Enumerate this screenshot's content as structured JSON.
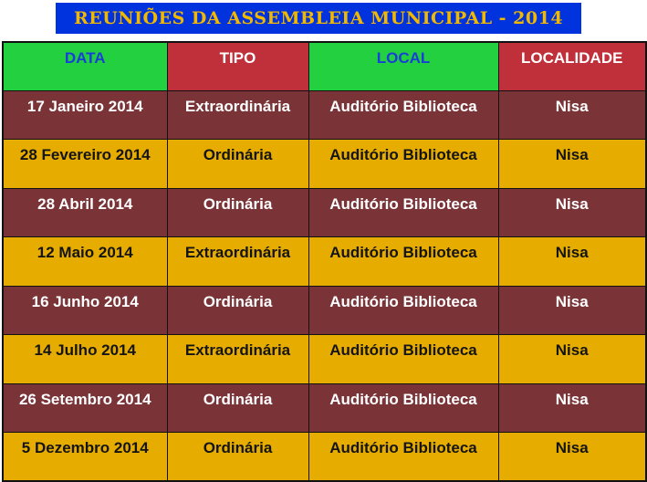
{
  "title": "REUNIÕES DA ASSEMBLEIA MUNICIPAL - 2014",
  "colors": {
    "banner_bg": "#0033dd",
    "banner_text": "#f0b800",
    "header_green": "#22d040",
    "header_red": "#c0303a",
    "row_maroon": "#7a3438",
    "row_gold": "#e6ac00"
  },
  "headers": [
    "DATA",
    "TIPO",
    "LOCAL",
    "LOCALIDADE"
  ],
  "rows": [
    {
      "data": "17 Janeiro 2014",
      "tipo": "Extraordinária",
      "local": "Auditório Biblioteca",
      "localidade": "Nisa",
      "style": "maroon"
    },
    {
      "data": "28 Fevereiro 2014",
      "tipo": "Ordinária",
      "local": "Auditório Biblioteca",
      "localidade": "Nisa",
      "style": "gold"
    },
    {
      "data": "28 Abril 2014",
      "tipo": "Ordinária",
      "local": "Auditório Biblioteca",
      "localidade": "Nisa",
      "style": "maroon"
    },
    {
      "data": "12 Maio 2014",
      "tipo": "Extraordinária",
      "local": "Auditório Biblioteca",
      "localidade": "Nisa",
      "style": "gold"
    },
    {
      "data": "16 Junho 2014",
      "tipo": "Ordinária",
      "local": "Auditório Biblioteca",
      "localidade": "Nisa",
      "style": "maroon"
    },
    {
      "data": "14 Julho 2014",
      "tipo": "Extraordinária",
      "local": "Auditório Biblioteca",
      "localidade": "Nisa",
      "style": "gold"
    },
    {
      "data": "26 Setembro 2014",
      "tipo": "Ordinária",
      "local": "Auditório Biblioteca",
      "localidade": "Nisa",
      "style": "maroon"
    },
    {
      "data": "5 Dezembro 2014",
      "tipo": "Ordinária",
      "local": "Auditório Biblioteca",
      "localidade": "Nisa",
      "style": "gold"
    }
  ]
}
